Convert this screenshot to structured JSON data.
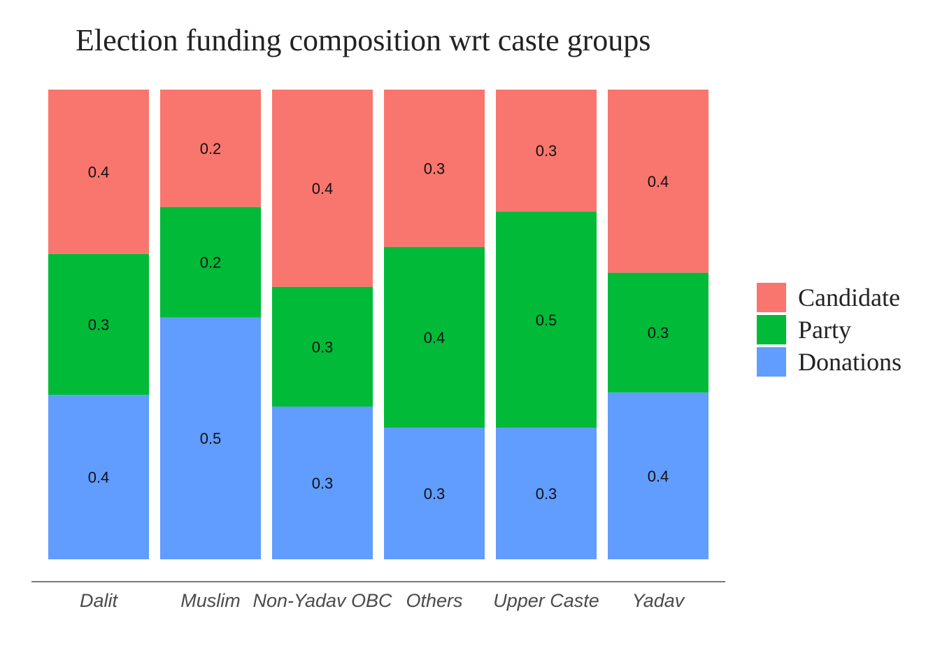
{
  "chart_data": {
    "type": "bar",
    "stacked": true,
    "normalized": true,
    "title": "Election funding composition wrt caste groups",
    "xlabel": "",
    "ylabel": "",
    "categories": [
      "Dalit",
      "Muslim",
      "Non-Yadav OBC",
      "Others",
      "Upper Caste",
      "Yadav"
    ],
    "series": [
      {
        "name": "Candidate",
        "color": "#F8766D",
        "values": [
          0.35,
          0.25,
          0.42,
          0.335,
          0.26,
          0.39
        ],
        "labels": [
          "0.4",
          "0.2",
          "0.4",
          "0.3",
          "0.3",
          "0.4"
        ]
      },
      {
        "name": "Party",
        "color": "#00BA38",
        "values": [
          0.3,
          0.235,
          0.255,
          0.385,
          0.46,
          0.255
        ],
        "labels": [
          "0.3",
          "0.2",
          "0.3",
          "0.4",
          "0.5",
          "0.3"
        ]
      },
      {
        "name": "Donations",
        "color": "#619CFF",
        "values": [
          0.35,
          0.515,
          0.325,
          0.28,
          0.28,
          0.355
        ],
        "labels": [
          "0.4",
          "0.5",
          "0.3",
          "0.3",
          "0.3",
          "0.4"
        ]
      }
    ],
    "ylim": [
      0,
      1
    ],
    "grid": false,
    "legend": "right"
  }
}
